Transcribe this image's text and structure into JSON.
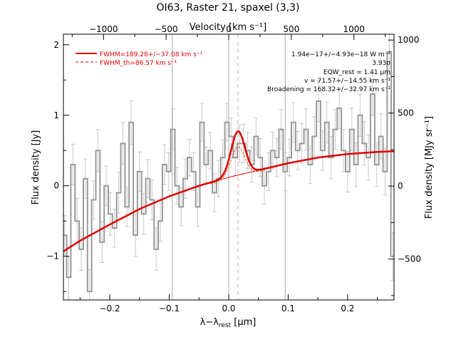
{
  "chart_data": {
    "type": "line",
    "title": "OI63, Raster 21, spaxel (3,3)",
    "xlabel_main": "λ−λ",
    "xlabel_sub": "rest",
    "xlabel_unit": " [μm]",
    "ylabel_left": "Flux density [Jy]",
    "ylabel_right": "Flux density [MJy sr⁻¹]",
    "top_axis_label": "Velocity [km s⁻¹]",
    "xlim": [
      -0.278,
      0.278
    ],
    "ylim": [
      -1.62,
      2.15
    ],
    "right_ylim": [
      -780,
      1040
    ],
    "top_xlim": [
      -1320,
      1320
    ],
    "x_ticks": [
      -0.2,
      -0.1,
      0.0,
      0.1,
      0.2
    ],
    "x_tick_labels": [
      "−0.2",
      "−0.1",
      "0.0",
      "0.1",
      "0.2"
    ],
    "y_ticks": [
      -1,
      0,
      1,
      2
    ],
    "y_tick_labels": [
      "−1",
      "0",
      "1",
      "2"
    ],
    "right_ticks": [
      -500,
      0,
      500,
      1000
    ],
    "right_tick_labels": [
      "−500",
      "0",
      "500",
      "1000"
    ],
    "top_ticks": [
      -1000,
      -500,
      0,
      500,
      1000
    ],
    "top_tick_labels": [
      "−1000",
      "−500",
      "0",
      "500",
      "1000"
    ],
    "vertical_lines": [
      -0.095,
      0.0,
      0.095
    ],
    "line_center": 0.0155,
    "legend": [
      {
        "label": "FWHM=189.28+/−37.08 km s⁻¹",
        "style": "solid"
      },
      {
        "label": "FWHM_th=86.57 km s⁻¹",
        "style": "dashed"
      }
    ],
    "annotations": [
      "1.94e−17+/−4.93e−18 W m⁻²",
      "3.93σ",
      "EQW_rest = 1.41 μm",
      "v = 71.57+/−14.55 km s⁻¹",
      "Broadening = 168.32+/−32.97 km s⁻¹"
    ],
    "fit_model": {
      "continuum_points": {
        "x": [
          -0.278,
          -0.25,
          -0.2,
          -0.15,
          -0.1,
          -0.05,
          0.0,
          0.05,
          0.1,
          0.15,
          0.2,
          0.25,
          0.278
        ],
        "y": [
          -0.93,
          -0.78,
          -0.55,
          -0.33,
          -0.15,
          0.0,
          0.12,
          0.22,
          0.32,
          0.4,
          0.45,
          0.48,
          0.49
        ]
      },
      "gaussian_amplitude": 0.62,
      "gaussian_center": 0.0155,
      "gaussian_sigma": 0.0115
    },
    "series": [
      {
        "name": "data",
        "x": [
          -0.276,
          -0.269,
          -0.262,
          -0.255,
          -0.248,
          -0.241,
          -0.234,
          -0.227,
          -0.22,
          -0.213,
          -0.206,
          -0.199,
          -0.192,
          -0.185,
          -0.178,
          -0.171,
          -0.164,
          -0.157,
          -0.15,
          -0.143,
          -0.136,
          -0.129,
          -0.122,
          -0.115,
          -0.108,
          -0.101,
          -0.094,
          -0.087,
          -0.08,
          -0.073,
          -0.066,
          -0.059,
          -0.052,
          -0.045,
          -0.038,
          -0.031,
          -0.024,
          -0.017,
          -0.01,
          -0.003,
          0.004,
          0.011,
          0.018,
          0.025,
          0.032,
          0.039,
          0.046,
          0.053,
          0.06,
          0.067,
          0.074,
          0.081,
          0.088,
          0.095,
          0.102,
          0.109,
          0.116,
          0.123,
          0.13,
          0.137,
          0.144,
          0.151,
          0.158,
          0.165,
          0.172,
          0.179,
          0.186,
          0.193,
          0.2,
          0.207,
          0.214,
          0.221,
          0.228,
          0.235,
          0.242,
          0.249,
          0.256,
          0.263,
          0.27,
          0.276
        ],
        "y": [
          -0.7,
          -1.3,
          0.3,
          -0.5,
          -0.9,
          0.1,
          -1.5,
          -0.2,
          0.5,
          -0.8,
          0.0,
          -0.4,
          -0.6,
          -0.1,
          0.6,
          -0.3,
          0.9,
          -0.7,
          0.2,
          -0.4,
          0.1,
          -0.2,
          -0.9,
          -0.5,
          0.3,
          0.2,
          0.8,
          0.0,
          -0.3,
          0.1,
          0.4,
          0.2,
          -0.3,
          0.9,
          0.3,
          0.5,
          -0.1,
          0.1,
          0.4,
          0.9,
          0.7,
          0.4,
          0.6,
          0.6,
          0.5,
          0.3,
          0.7,
          0.4,
          0.0,
          0.2,
          0.5,
          0.4,
          0.8,
          0.2,
          0.4,
          0.9,
          0.5,
          0.6,
          0.8,
          0.3,
          0.7,
          1.2,
          0.5,
          0.9,
          0.4,
          0.8,
          1.1,
          0.5,
          0.2,
          0.8,
          0.3,
          1.0,
          0.6,
          0.4,
          1.3,
          0.3,
          0.7,
          0.2,
          1.9,
          -1.0
        ],
        "errors": [
          0.28,
          0.3,
          0.29,
          0.32,
          0.3,
          0.28,
          0.31,
          0.27,
          0.3,
          0.29,
          0.28,
          0.3,
          0.27,
          0.29,
          0.3,
          0.28,
          0.31,
          0.3,
          0.28,
          0.29,
          0.27,
          0.28,
          0.3,
          0.29,
          0.28,
          0.27,
          0.29,
          0.26,
          0.27,
          0.28,
          0.26,
          0.27,
          0.28,
          0.27,
          0.25,
          0.26,
          0.27,
          0.26,
          0.25,
          0.27,
          0.26,
          0.25,
          0.26,
          0.27,
          0.26,
          0.25,
          0.26,
          0.27,
          0.26,
          0.27,
          0.26,
          0.27,
          0.28,
          0.27,
          0.26,
          0.28,
          0.27,
          0.28,
          0.29,
          0.27,
          0.28,
          0.29,
          0.28,
          0.29,
          0.3,
          0.28,
          0.29,
          0.3,
          0.29,
          0.3,
          0.31,
          0.3,
          0.31,
          0.32,
          0.3,
          0.31,
          0.32,
          0.33,
          0.32,
          0.34
        ]
      }
    ],
    "colors": {
      "data": "#999999",
      "fit": "#e00000",
      "gaussian": "#e05a00",
      "center_line": "#f0a0a0",
      "ref_lines": "#aaaaaa"
    }
  }
}
